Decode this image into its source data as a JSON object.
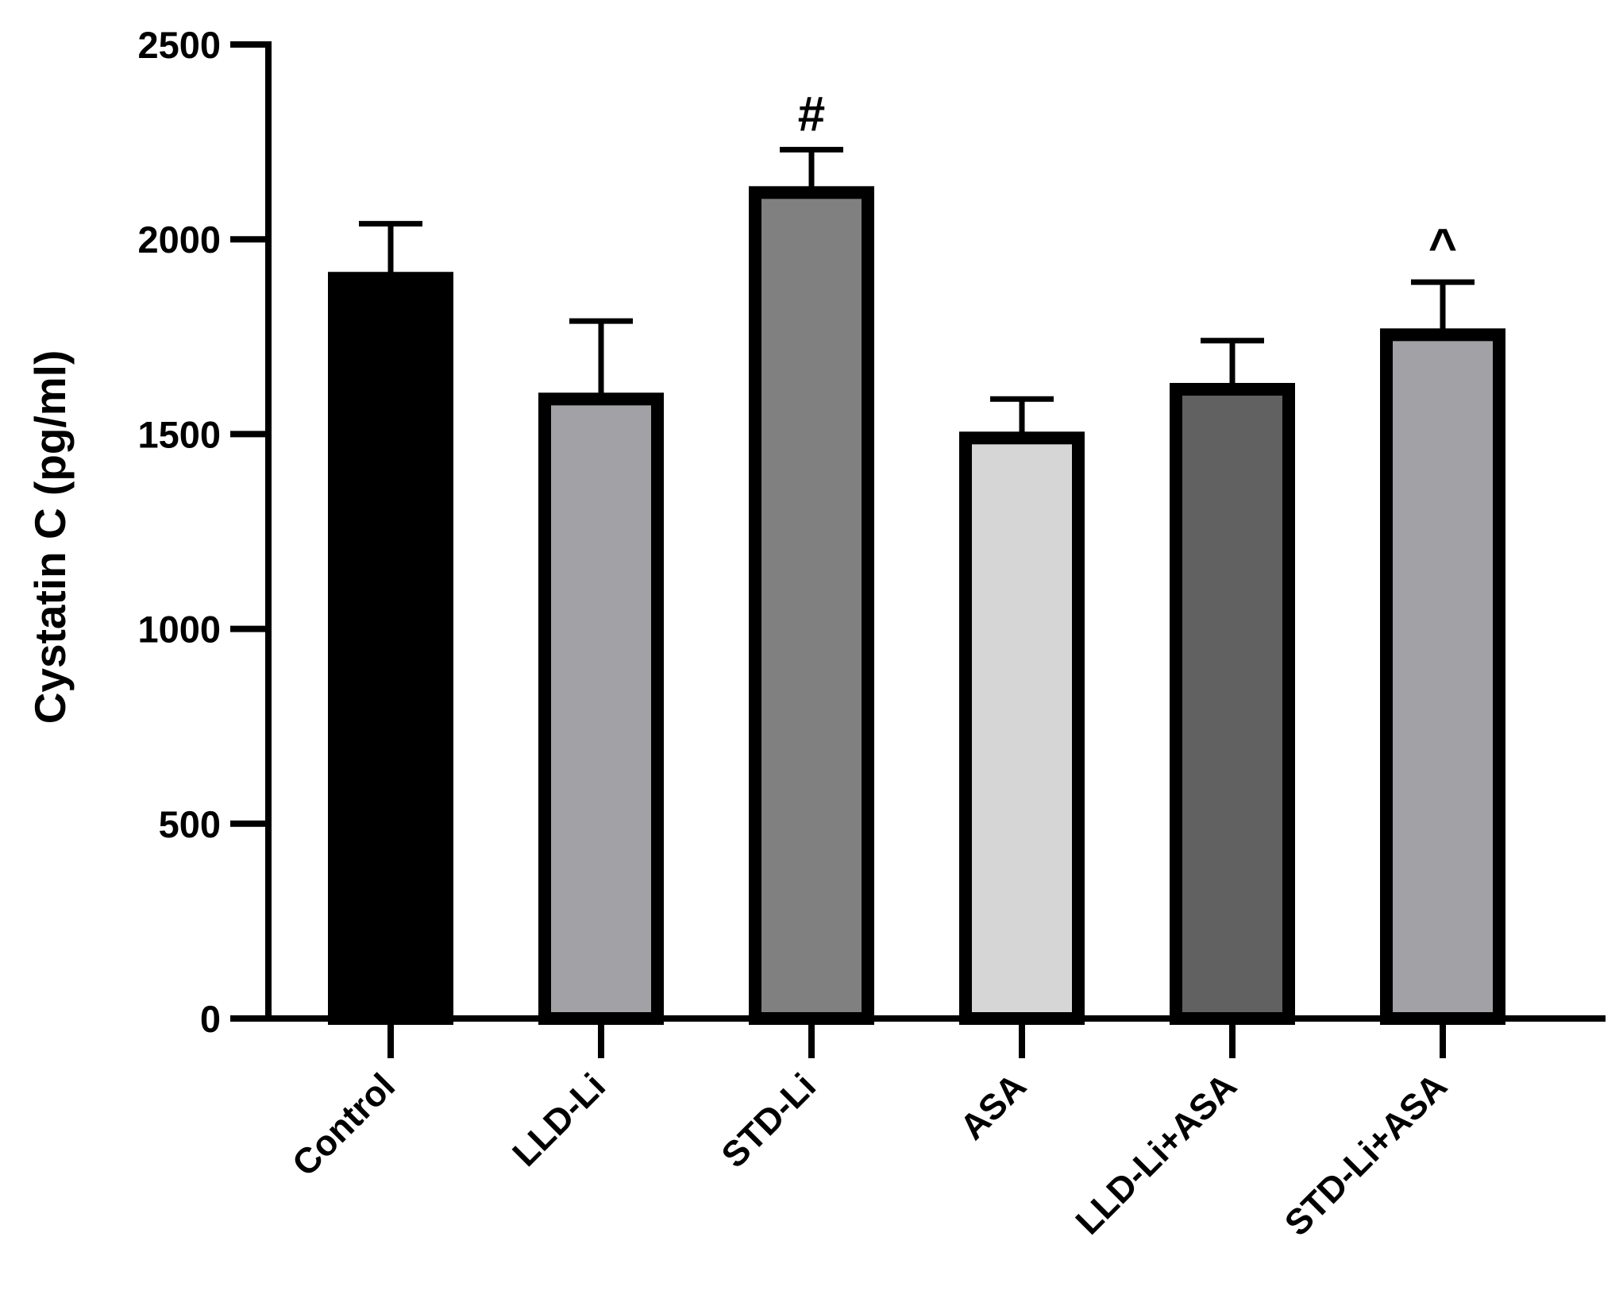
{
  "chart_data": {
    "type": "bar",
    "title": "",
    "xlabel": "",
    "ylabel": "Cystatin C (pg/ml)",
    "ylim": [
      0,
      2500
    ],
    "yticks": [
      0,
      500,
      1000,
      1500,
      2000,
      2500
    ],
    "grid": false,
    "categories": [
      "Control",
      "LLD-Li",
      "STD-Li",
      "ASA",
      "LLD-Li+ASA",
      "STD-Li+ASA"
    ],
    "values": [
      1900,
      1590,
      2120,
      1490,
      1615,
      1755
    ],
    "errors": [
      140,
      200,
      110,
      100,
      125,
      135
    ],
    "annotations": [
      "",
      "",
      "#",
      "",
      "",
      "^"
    ],
    "colors": [
      "#000000",
      "#a2a1a5",
      "#808080",
      "#d6d6d6",
      "#616161",
      "#a2a1a5"
    ],
    "edge_color": "#000000"
  }
}
